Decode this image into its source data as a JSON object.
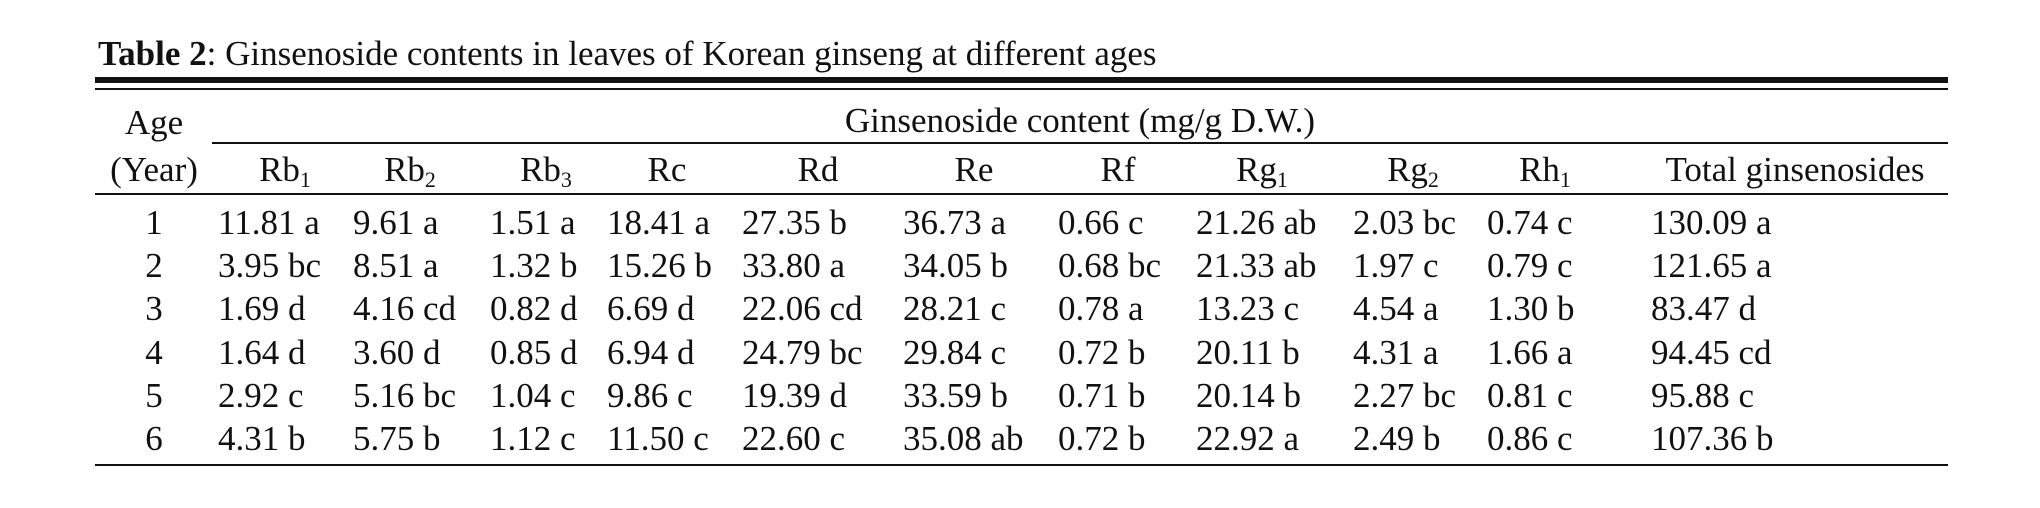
{
  "caption": {
    "label": "Table 2",
    "text": ": Ginsenoside contents in leaves of Korean ginseng at different ages"
  },
  "table": {
    "age_header_line1": "Age",
    "age_header_line2": "(Year)",
    "group_header": "Ginsenoside content (mg/g D.W.)",
    "columns": [
      {
        "base": "Rb",
        "sub": "1"
      },
      {
        "base": "Rb",
        "sub": "2"
      },
      {
        "base": "Rb",
        "sub": "3"
      },
      {
        "base": "Rc",
        "sub": ""
      },
      {
        "base": "Rd",
        "sub": ""
      },
      {
        "base": "Re",
        "sub": ""
      },
      {
        "base": "Rf",
        "sub": ""
      },
      {
        "base": "Rg",
        "sub": "1"
      },
      {
        "base": "Rg",
        "sub": "2"
      },
      {
        "base": "Rh",
        "sub": "1"
      },
      {
        "base": "Total ginsenosides",
        "sub": ""
      }
    ],
    "rows": [
      {
        "age": "1",
        "values": [
          "11.81 a",
          "9.61 a",
          "1.51 a",
          "18.41 a",
          "27.35 b",
          "36.73 a",
          "0.66 c",
          "21.26 ab",
          "2.03 bc",
          "0.74 c",
          "130.09 a"
        ]
      },
      {
        "age": "2",
        "values": [
          "3.95 bc",
          "8.51 a",
          "1.32 b",
          "15.26 b",
          "33.80 a",
          "34.05 b",
          "0.68 bc",
          "21.33 ab",
          "1.97 c",
          "0.79 c",
          "121.65 a"
        ]
      },
      {
        "age": "3",
        "values": [
          "1.69 d",
          "4.16 cd",
          "0.82 d",
          "6.69 d",
          "22.06 cd",
          "28.21 c",
          "0.78 a",
          "13.23 c",
          "4.54 a",
          "1.30 b",
          "83.47 d"
        ]
      },
      {
        "age": "4",
        "values": [
          "1.64 d",
          "3.60 d",
          "0.85 d",
          "6.94 d",
          "24.79 bc",
          "29.84 c",
          "0.72 b",
          "20.11 b",
          "4.31 a",
          "1.66 a",
          "94.45 cd"
        ]
      },
      {
        "age": "5",
        "values": [
          "2.92 c",
          "5.16 bc",
          "1.04 c",
          "9.86 c",
          "19.39 d",
          "33.59 b",
          "0.71 b",
          "20.14 b",
          "2.27 bc",
          "0.81 c",
          "95.88 c"
        ]
      },
      {
        "age": "6",
        "values": [
          "4.31 b",
          "5.75 b",
          "1.12 c",
          "11.50 c",
          "22.60 c",
          "35.08 ab",
          "0.72 b",
          "22.92 a",
          "2.49 b",
          "0.86 c",
          "107.36 b"
        ]
      }
    ]
  }
}
